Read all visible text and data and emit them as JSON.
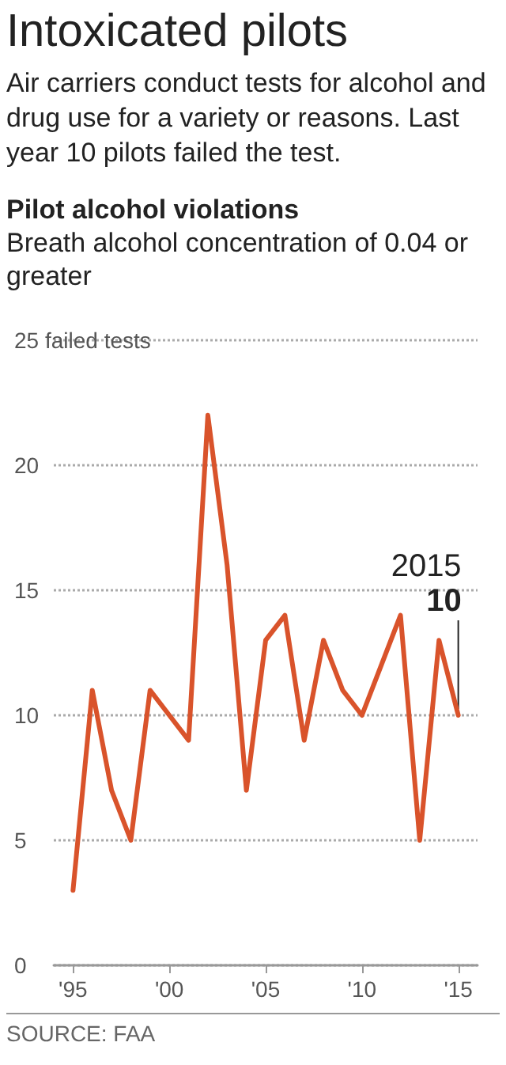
{
  "chart_data": {
    "type": "line",
    "title": "Intoxicated pilots",
    "subtitle": "Air carriers conduct tests for alcohol and drug use for a variety or reasons. Last year 10 pilots failed the test.",
    "annotations": [
      "Pilot alcohol violations",
      "Breath alcohol concentration of 0.04 or greater",
      {
        "text": "2015",
        "x": 2015,
        "y": 10
      },
      {
        "text": "10",
        "x": 2015,
        "y": 10
      },
      "SOURCE: FAA"
    ],
    "x": [
      1995,
      1996,
      1997,
      1998,
      1999,
      2000,
      2001,
      2002,
      2003,
      2004,
      2005,
      2006,
      2007,
      2008,
      2009,
      2010,
      2011,
      2012,
      2013,
      2014,
      2015
    ],
    "series": [
      {
        "color": "#d9532b",
        "values": [
          3,
          11,
          7,
          5,
          11,
          10,
          9,
          22,
          16,
          7,
          13,
          14,
          9,
          13,
          11,
          10,
          12,
          14,
          5,
          13,
          10
        ]
      }
    ],
    "xlim": [
      1994,
      2016
    ],
    "xticks": [
      {
        "value": 1995,
        "label": "'95"
      },
      {
        "value": 2000,
        "label": "'00"
      },
      {
        "value": 2005,
        "label": "'05"
      },
      {
        "value": 2010,
        "label": "'10"
      },
      {
        "value": 2015,
        "label": "'15"
      }
    ],
    "ylim": [
      0,
      25
    ],
    "yticks": [
      0,
      5,
      10,
      15,
      20,
      {
        "value": 25,
        "label": "25 failed tests"
      }
    ],
    "grid": "y",
    "marker": "none",
    "line_style": "solid"
  }
}
